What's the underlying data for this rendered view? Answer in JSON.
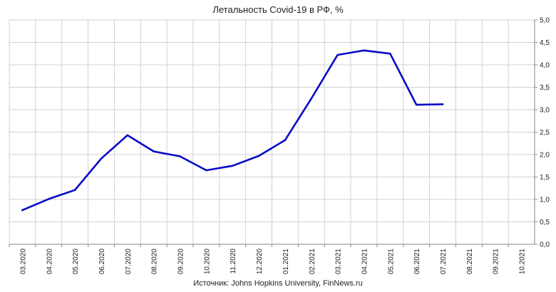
{
  "chart_data": {
    "type": "line",
    "title": "Летальность Covid-19 в РФ, %",
    "source": "Источник: Johns Hopkins University, FinNews.ru",
    "categories": [
      "03.2020",
      "04.2020",
      "05.2020",
      "06.2020",
      "07.2020",
      "08.2020",
      "09.2020",
      "10.2020",
      "11.2020",
      "12.2020",
      "01.2021",
      "02.2021",
      "03.2021",
      "04.2021",
      "05.2021",
      "06.2021",
      "07.2021",
      "08.2021",
      "09.2021",
      "10.2021"
    ],
    "series": [
      {
        "values": [
          0.76,
          1.01,
          1.21,
          1.91,
          2.43,
          2.07,
          1.96,
          1.65,
          1.75,
          1.97,
          2.32,
          3.25,
          4.22,
          4.32,
          4.25,
          3.11,
          3.12,
          null,
          null,
          null
        ],
        "color": "#0a0ac8"
      }
    ],
    "ylim": [
      0,
      5
    ],
    "y_ticks": [
      "0,0",
      "0,5",
      "1,0",
      "1,5",
      "2,0",
      "2,5",
      "3,0",
      "3,5",
      "4,0",
      "4,5",
      "5,0"
    ],
    "y_axis_position": "right",
    "grid": true,
    "xlabel": "",
    "ylabel": ""
  }
}
